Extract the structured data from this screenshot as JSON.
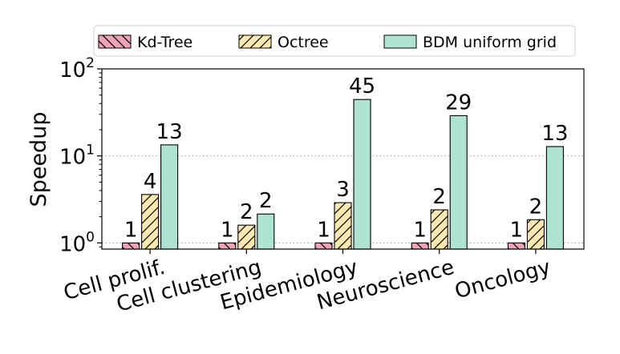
{
  "chart_data": {
    "type": "bar",
    "title": "",
    "xlabel": "",
    "ylabel": "Speedup",
    "yscale": "log",
    "ylim": [
      0.85,
      100
    ],
    "yticks": [
      {
        "base": "10",
        "exp": "0",
        "value": 1
      },
      {
        "base": "10",
        "exp": "1",
        "value": 10
      },
      {
        "base": "10",
        "exp": "2",
        "value": 100
      }
    ],
    "grid": "horizontal dotted",
    "legend_position": "top",
    "categories": [
      "Cell prolif.",
      "Cell clustering",
      "Epidemiology",
      "Neuroscience",
      "Oncology"
    ],
    "series": [
      {
        "name": "Kd-Tree",
        "color": "#f0a3b4",
        "pattern": "backslash-hatch",
        "values": [
          1,
          1,
          1,
          1,
          1
        ],
        "labels": [
          "1",
          "1",
          "1",
          "1",
          "1"
        ]
      },
      {
        "name": "Octree",
        "color": "#fde8b2",
        "pattern": "slash-hatch",
        "values": [
          3.6,
          1.6,
          2.9,
          2.4,
          1.85
        ],
        "labels": [
          "4",
          "2",
          "3",
          "2",
          "2"
        ]
      },
      {
        "name": "BDM uniform grid",
        "color": "#aee3d3",
        "pattern": "none",
        "values": [
          13.4,
          2.15,
          44.5,
          29,
          12.8
        ],
        "labels": [
          "13",
          "2",
          "45",
          "29",
          "13"
        ]
      }
    ]
  }
}
